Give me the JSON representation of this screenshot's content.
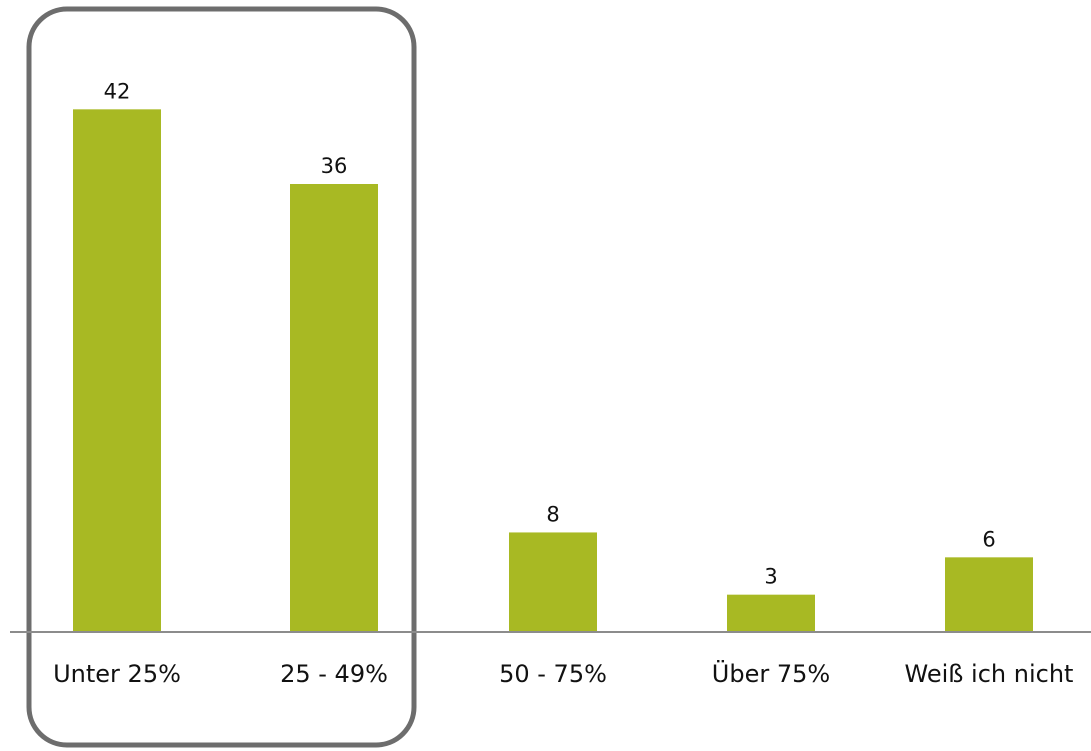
{
  "chart_data": {
    "type": "bar",
    "title": "",
    "xlabel": "",
    "ylabel": "",
    "categories": [
      "Unter 25%",
      "25 - 49%",
      "50 - 75%",
      "Über 75%",
      "Weiß ich nicht"
    ],
    "values": [
      42,
      36,
      8,
      3,
      6
    ],
    "value_labels": [
      "42",
      "36",
      "8",
      "3",
      "6"
    ],
    "ylim": [
      0,
      45
    ],
    "grid": false,
    "legend": "none",
    "highlighted_categories": [
      "Unter 25%",
      "25 - 49%"
    ],
    "colors": {
      "bar": "#a8b923",
      "baseline": "#8c8c8c",
      "highlight_box": "#6d6d6d",
      "text": "#111111"
    }
  }
}
